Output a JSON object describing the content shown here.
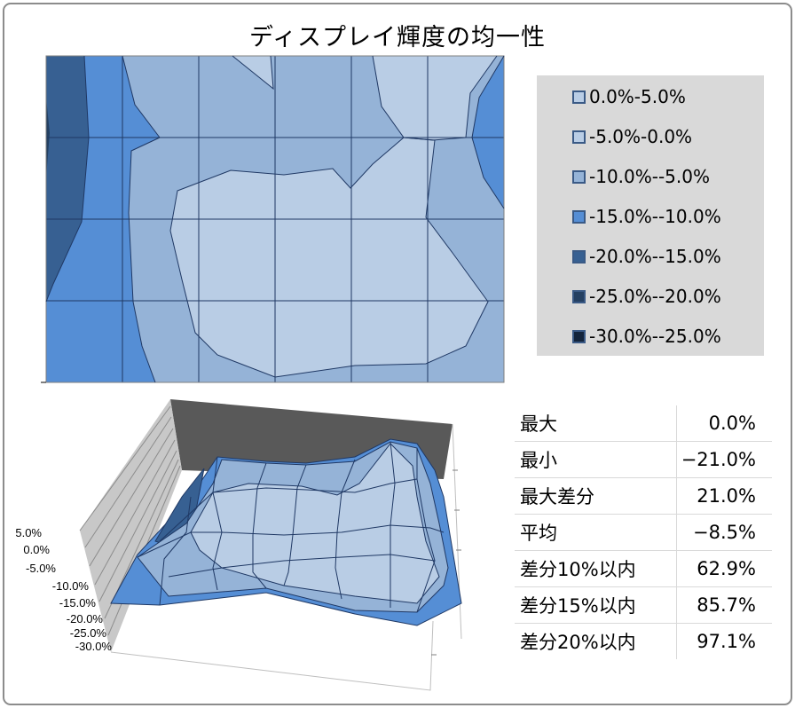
{
  "title": "ディスプレイ輝度の均一性",
  "legend": [
    {
      "label": "0.0%-5.0%",
      "color": "#b9cde5"
    },
    {
      "label": "-5.0%-0.0%",
      "color": "#b9cde5"
    },
    {
      "label": "-10.0%--5.0%",
      "color": "#95b3d7"
    },
    {
      "label": "-15.0%--10.0%",
      "color": "#558ed5"
    },
    {
      "label": "-20.0%--15.0%",
      "color": "#376092"
    },
    {
      "label": "-25.0%--20.0%",
      "color": "#244062"
    },
    {
      "label": "-30.0%--25.0%",
      "color": "#13243b"
    }
  ],
  "z_axis_labels": [
    "5.0%",
    "0.0%",
    "-5.0%",
    "-10.0%",
    "-15.0%",
    "-20.0%",
    "-25.0%",
    "-30.0%"
  ],
  "stats": [
    {
      "label": "最大",
      "value": "0.0%"
    },
    {
      "label": "最小",
      "value": "−21.0%"
    },
    {
      "label": "最大差分",
      "value": "21.0%"
    },
    {
      "label": "平均",
      "value": "−8.5%"
    },
    {
      "label": "差分10%以内",
      "value": "62.9%"
    },
    {
      "label": "差分15%以内",
      "value": "85.7%"
    },
    {
      "label": "差分20%以内",
      "value": "97.1%"
    }
  ],
  "chart_data": [
    {
      "type": "heatmap",
      "title": "ディスプレイ輝度の均一性",
      "bands": [
        "0.0%-5.0%",
        "-5.0%-0.0%",
        "-10.0%--5.0%",
        "-15.0%--10.0%",
        "-20.0%--15.0%",
        "-25.0%--20.0%",
        "-30.0%--25.0%"
      ],
      "grid_lines": true
    },
    {
      "type": "surface",
      "zlim": [
        -30,
        5
      ],
      "z_ticks": [
        "5.0%",
        "0.0%",
        "-5.0%",
        "-10.0%",
        "-15.0%",
        "-20.0%",
        "-25.0%",
        "-30.0%"
      ],
      "colors": {
        "light": "#b9cde5",
        "mid": "#95b3d7",
        "blue": "#558ed5",
        "dark": "#376092",
        "darker": "#244062",
        "wall": "#595959",
        "side": "#c8c8c8"
      }
    }
  ]
}
